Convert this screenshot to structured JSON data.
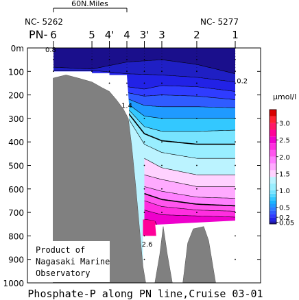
{
  "chart_data": {
    "type": "heatmap",
    "title": "Phosphate-P along PN line,Cruise 03-01",
    "scale_bar_label": "60N.Miles",
    "section_labels": {
      "left": "NC- 5262",
      "right": "NC- 5277"
    },
    "line_prefix": "PN-",
    "stations": [
      {
        "name": "6",
        "km": 0
      },
      {
        "name": "5",
        "km": 55
      },
      {
        "name": "4'",
        "km": 80
      },
      {
        "name": "4",
        "km": 105
      },
      {
        "name": "3'",
        "km": 130
      },
      {
        "name": "3",
        "km": 155
      },
      {
        "name": "2",
        "km": 205
      },
      {
        "name": "1",
        "km": 260
      }
    ],
    "ylabel": "",
    "yunit": "m",
    "ylim": [
      0,
      1000
    ],
    "yticks": [
      0,
      100,
      200,
      300,
      400,
      500,
      600,
      700,
      800,
      900,
      1000
    ],
    "colorbar": {
      "unit": "μmol/l",
      "tick_labels": [
        {
          "value": 3.0,
          "label": "3.0"
        },
        {
          "value": 2.5,
          "label": "2.5"
        },
        {
          "value": 2.0,
          "label": "2.0"
        },
        {
          "value": 1.5,
          "label": "1.5"
        },
        {
          "value": 1.0,
          "label": "1.0"
        },
        {
          "value": 0.5,
          "label": "0.5"
        },
        {
          "value": 0.2,
          "label": "0.2"
        },
        {
          "value": 0.05,
          "label": "0.05"
        }
      ],
      "levels": [
        {
          "min": 0.0,
          "max": 0.05,
          "color": "#1a0f8c"
        },
        {
          "min": 0.05,
          "max": 0.1,
          "color": "#1f1fc4"
        },
        {
          "min": 0.1,
          "max": 0.2,
          "color": "#2222e6"
        },
        {
          "min": 0.2,
          "max": 0.3,
          "color": "#2f3cff"
        },
        {
          "min": 0.3,
          "max": 0.4,
          "color": "#2f5cff"
        },
        {
          "min": 0.4,
          "max": 0.5,
          "color": "#2f7dff"
        },
        {
          "min": 0.5,
          "max": 0.6,
          "color": "#1f9aff"
        },
        {
          "min": 0.6,
          "max": 0.7,
          "color": "#19b4ff"
        },
        {
          "min": 0.7,
          "max": 0.8,
          "color": "#33c8ff"
        },
        {
          "min": 0.8,
          "max": 0.9,
          "color": "#55d8ff"
        },
        {
          "min": 0.9,
          "max": 1.0,
          "color": "#77e4ff"
        },
        {
          "min": 1.0,
          "max": 1.2,
          "color": "#99eeff"
        },
        {
          "min": 1.2,
          "max": 1.4,
          "color": "#bbf3ff"
        },
        {
          "min": 1.4,
          "max": 1.6,
          "color": "#ffd2ff"
        },
        {
          "min": 1.6,
          "max": 1.8,
          "color": "#ffaaff"
        },
        {
          "min": 1.8,
          "max": 2.0,
          "color": "#ff80ff"
        },
        {
          "min": 2.0,
          "max": 2.2,
          "color": "#ff55ee"
        },
        {
          "min": 2.2,
          "max": 2.4,
          "color": "#ff2ee0"
        },
        {
          "min": 2.4,
          "max": 2.6,
          "color": "#ee00cc"
        },
        {
          "min": 2.6,
          "max": 2.8,
          "color": "#ff0099"
        },
        {
          "min": 2.8,
          "max": 3.0,
          "color": "#ff1a66"
        },
        {
          "min": 3.0,
          "max": 3.2,
          "color": "#ff2233"
        },
        {
          "min": 3.2,
          "max": 3.4,
          "color": "#d90000"
        }
      ]
    },
    "contour_labels": [
      {
        "text": "0.8",
        "km": -4,
        "depth": 18
      },
      {
        "text": "0.2",
        "km": 270,
        "depth": 150
      },
      {
        "text": "1.4",
        "km": 105,
        "depth": 255
      },
      {
        "text": "2.6",
        "km": 134,
        "depth": 845
      }
    ],
    "bottom_profile": [
      {
        "km": 0,
        "depth": 128
      },
      {
        "km": 18,
        "depth": 115
      },
      {
        "km": 35,
        "depth": 128
      },
      {
        "km": 55,
        "depth": 145
      },
      {
        "km": 70,
        "depth": 170
      },
      {
        "km": 80,
        "depth": 185
      },
      {
        "km": 90,
        "depth": 220
      },
      {
        "km": 100,
        "depth": 260
      },
      {
        "km": 107,
        "depth": 300
      },
      {
        "km": 112,
        "depth": 420
      },
      {
        "km": 118,
        "depth": 600
      },
      {
        "km": 124,
        "depth": 800
      },
      {
        "km": 128,
        "depth": 930
      },
      {
        "km": 132,
        "depth": 1000
      },
      {
        "km": 145,
        "depth": 1000
      },
      {
        "km": 152,
        "depth": 880
      },
      {
        "km": 157,
        "depth": 760
      },
      {
        "km": 163,
        "depth": 880
      },
      {
        "km": 170,
        "depth": 1000
      },
      {
        "km": 185,
        "depth": 1000
      },
      {
        "km": 192,
        "depth": 830
      },
      {
        "km": 200,
        "depth": 770
      },
      {
        "km": 215,
        "depth": 760
      },
      {
        "km": 222,
        "depth": 820
      },
      {
        "km": 232,
        "depth": 1000
      },
      {
        "km": 260,
        "depth": 1000
      }
    ],
    "extra_shelf_ridge": [
      {
        "km": 55,
        "depth": 100
      },
      {
        "km": 80,
        "depth": 100
      },
      {
        "km": 80,
        "depth": 140
      },
      {
        "km": 55,
        "depth": 140
      }
    ],
    "bands": [
      {
        "value": 0.05,
        "rows": [
          [
            0,
            82
          ],
          [
            55,
            90
          ],
          [
            105,
            60
          ],
          [
            155,
            50
          ],
          [
            205,
            70
          ],
          [
            260,
            110
          ]
        ]
      },
      {
        "value": 0.1,
        "rows": [
          [
            0,
            95
          ],
          [
            55,
            95
          ],
          [
            105,
            110
          ],
          [
            155,
            115
          ],
          [
            205,
            125
          ],
          [
            260,
            145
          ]
        ]
      },
      {
        "value": 0.2,
        "rows": [
          [
            105,
            165
          ],
          [
            130,
            175
          ],
          [
            155,
            160
          ],
          [
            205,
            165
          ],
          [
            260,
            185
          ]
        ]
      },
      {
        "value": 0.3,
        "rows": [
          [
            105,
            190
          ],
          [
            130,
            205
          ],
          [
            155,
            200
          ],
          [
            205,
            205
          ],
          [
            260,
            220
          ]
        ]
      },
      {
        "value": 0.5,
        "rows": [
          [
            105,
            215
          ],
          [
            130,
            245
          ],
          [
            155,
            250
          ],
          [
            205,
            250
          ],
          [
            260,
            255
          ]
        ]
      },
      {
        "value": 0.7,
        "rows": [
          [
            105,
            235
          ],
          [
            130,
            290
          ],
          [
            155,
            300
          ],
          [
            205,
            300
          ],
          [
            260,
            300
          ]
        ]
      },
      {
        "value": 0.9,
        "rows": [
          [
            105,
            255
          ],
          [
            130,
            335
          ],
          [
            155,
            355
          ],
          [
            205,
            355
          ],
          [
            260,
            350
          ]
        ]
      },
      {
        "value": 1.0,
        "rows": [
          [
            105,
            270
          ],
          [
            130,
            365
          ],
          [
            155,
            395
          ],
          [
            205,
            410
          ],
          [
            260,
            410
          ]
        ]
      },
      {
        "value": 1.2,
        "rows": [
          [
            105,
            290
          ],
          [
            130,
            410
          ],
          [
            155,
            445
          ],
          [
            205,
            470
          ],
          [
            260,
            470
          ]
        ]
      },
      {
        "value": 1.4,
        "rows": [
          [
            130,
            470
          ],
          [
            155,
            510
          ],
          [
            205,
            540
          ],
          [
            260,
            540
          ]
        ]
      },
      {
        "value": 1.6,
        "rows": [
          [
            130,
            540
          ],
          [
            155,
            560
          ],
          [
            205,
            590
          ],
          [
            260,
            590
          ]
        ]
      },
      {
        "value": 1.8,
        "rows": [
          [
            130,
            590
          ],
          [
            155,
            610
          ],
          [
            205,
            635
          ],
          [
            260,
            640
          ]
        ]
      },
      {
        "value": 2.0,
        "rows": [
          [
            130,
            620
          ],
          [
            155,
            645
          ],
          [
            205,
            665
          ],
          [
            260,
            672
          ]
        ]
      },
      {
        "value": 2.2,
        "rows": [
          [
            130,
            650
          ],
          [
            155,
            675
          ],
          [
            205,
            690
          ],
          [
            260,
            695
          ]
        ]
      },
      {
        "value": 2.4,
        "rows": [
          [
            130,
            690
          ],
          [
            155,
            710
          ],
          [
            205,
            715
          ],
          [
            260,
            720
          ]
        ]
      },
      {
        "value": 2.6,
        "rows": [
          [
            130,
            730
          ],
          [
            145,
            735
          ],
          [
            155,
            800
          ]
        ]
      }
    ],
    "grid": false,
    "sample_points": true
  },
  "footer_text": {
    "line1": "Product of",
    "line2": "Nagasaki Marine",
    "line3": "Observatory"
  }
}
